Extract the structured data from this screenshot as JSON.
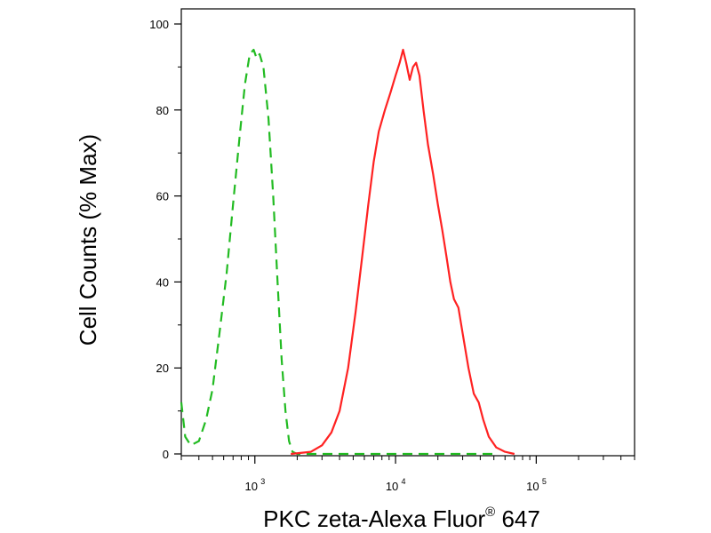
{
  "chart_data": {
    "type": "line",
    "xlabel": "PKC zeta-Alexa Fluor",
    "xlabel_mark": "®",
    "xlabel_suffix": " 647",
    "ylabel": "Cell Counts (% Max)",
    "x_scale": "log",
    "xlim": [
      300,
      500000
    ],
    "ylim": [
      0,
      100
    ],
    "y_ticks": [
      0,
      20,
      40,
      60,
      80,
      100
    ],
    "x_ticks": [
      {
        "value": 1000,
        "base": "10",
        "exp": "3"
      },
      {
        "value": 10000,
        "base": "10",
        "exp": "4"
      },
      {
        "value": 100000,
        "base": "10",
        "exp": "5"
      }
    ],
    "grid": false,
    "legend": "none",
    "series": [
      {
        "color": "#22bb22",
        "style": "dashed",
        "points": [
          [
            300,
            12
          ],
          [
            320,
            4
          ],
          [
            350,
            2
          ],
          [
            400,
            3
          ],
          [
            450,
            8
          ],
          [
            500,
            15
          ],
          [
            560,
            28
          ],
          [
            630,
            42
          ],
          [
            700,
            58
          ],
          [
            780,
            74
          ],
          [
            850,
            86
          ],
          [
            920,
            93
          ],
          [
            980,
            94
          ],
          [
            1030,
            92
          ],
          [
            1080,
            93
          ],
          [
            1150,
            90
          ],
          [
            1250,
            78
          ],
          [
            1350,
            60
          ],
          [
            1450,
            40
          ],
          [
            1550,
            22
          ],
          [
            1650,
            10
          ],
          [
            1750,
            3
          ],
          [
            1850,
            0.5
          ],
          [
            2000,
            0
          ],
          [
            4000,
            0
          ],
          [
            10000,
            0
          ],
          [
            20000,
            0
          ],
          [
            50000,
            0
          ]
        ]
      },
      {
        "color": "#ff2222",
        "style": "solid",
        "points": [
          [
            1800,
            0
          ],
          [
            2500,
            0.5
          ],
          [
            3000,
            2
          ],
          [
            3500,
            5
          ],
          [
            4000,
            10
          ],
          [
            4600,
            20
          ],
          [
            5200,
            33
          ],
          [
            5800,
            46
          ],
          [
            6400,
            58
          ],
          [
            7000,
            68
          ],
          [
            7600,
            75
          ],
          [
            8400,
            80
          ],
          [
            9200,
            84
          ],
          [
            10000,
            88
          ],
          [
            10700,
            91
          ],
          [
            11300,
            94
          ],
          [
            11900,
            91
          ],
          [
            12600,
            87
          ],
          [
            13300,
            90
          ],
          [
            14000,
            91
          ],
          [
            14800,
            88
          ],
          [
            15800,
            80
          ],
          [
            17000,
            72
          ],
          [
            18500,
            65
          ],
          [
            20000,
            58
          ],
          [
            21500,
            52
          ],
          [
            23000,
            46
          ],
          [
            24500,
            40
          ],
          [
            26000,
            36
          ],
          [
            28000,
            34
          ],
          [
            30000,
            28
          ],
          [
            33000,
            20
          ],
          [
            36000,
            14
          ],
          [
            39000,
            12
          ],
          [
            42000,
            8
          ],
          [
            46000,
            4
          ],
          [
            52000,
            1.5
          ],
          [
            60000,
            0.5
          ],
          [
            70000,
            0
          ]
        ]
      }
    ]
  }
}
